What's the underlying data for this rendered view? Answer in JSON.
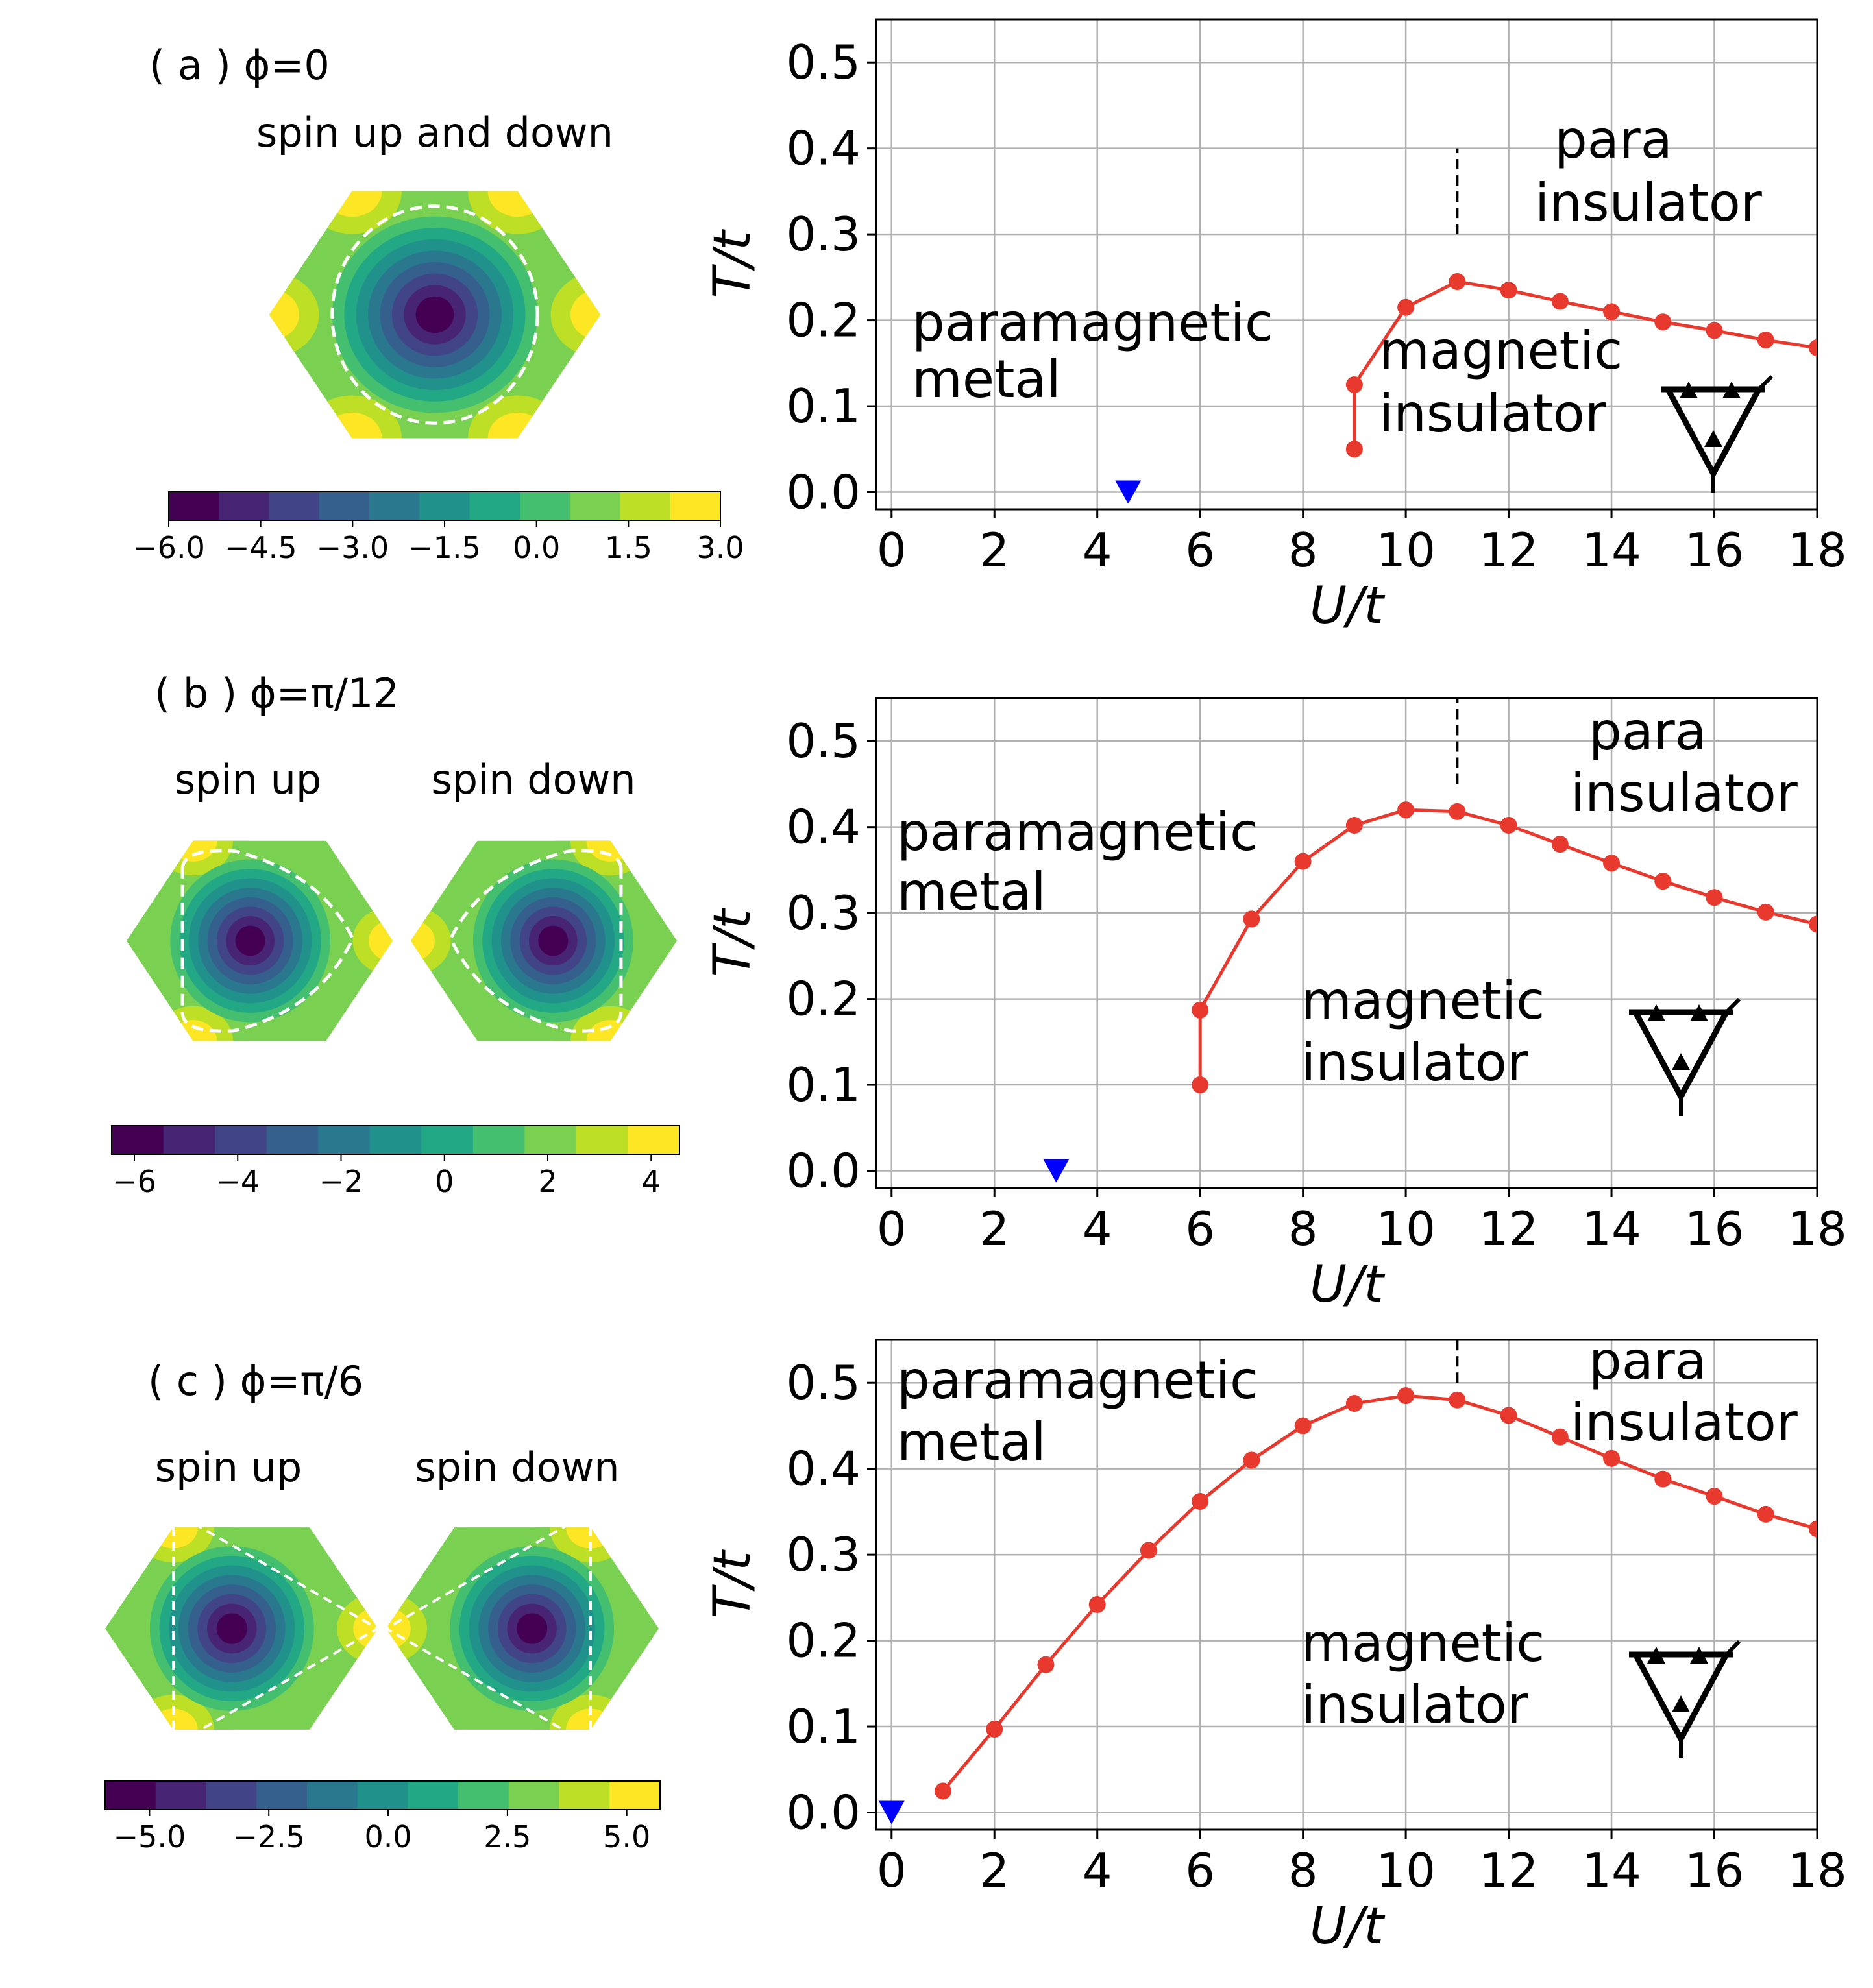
{
  "colormap": [
    "#440154",
    "#482475",
    "#414487",
    "#355f8d",
    "#2a788e",
    "#21918c",
    "#22a884",
    "#44bf70",
    "#7ad151",
    "#bddf26",
    "#fde725"
  ],
  "line_color": "#e8392e",
  "marker_color": "#0000ff",
  "panels": [
    {
      "label": "( a ) ϕ=0",
      "maps": [
        {
          "title": "spin up and down",
          "flip": false
        }
      ],
      "fermi": "circle",
      "colorbar_ticks": [
        "−6.0",
        "−4.5",
        "−3.0",
        "−1.5",
        "0.0",
        "1.5",
        "3.0"
      ],
      "regions": {
        "paramagnetic": [
          "paramagnetic",
          "metal"
        ],
        "para": [
          "para",
          "insulator"
        ],
        "magnetic": [
          "magnetic",
          "insulator"
        ]
      }
    },
    {
      "label": "( b ) ϕ=π/12",
      "maps": [
        {
          "title": "spin up",
          "flip": false
        },
        {
          "title": "spin down",
          "flip": true
        }
      ],
      "fermi": "rounded-triangle",
      "colorbar_ticks": [
        "−6",
        "−4",
        "−2",
        "0",
        "2",
        "4"
      ],
      "regions": {
        "paramagnetic": [
          "paramagnetic",
          "metal"
        ],
        "para": [
          "para",
          "insulator"
        ],
        "magnetic": [
          "magnetic",
          "insulator"
        ]
      }
    },
    {
      "label": "( c ) ϕ=π/6",
      "maps": [
        {
          "title": "spin up",
          "flip": false
        },
        {
          "title": "spin down",
          "flip": true
        }
      ],
      "fermi": "triangle",
      "colorbar_ticks": [
        "−5.0",
        "−2.5",
        "0.0",
        "2.5",
        "5.0"
      ],
      "regions": {
        "paramagnetic": [
          "paramagnetic",
          "metal"
        ],
        "para": [
          "para",
          "insulator"
        ],
        "magnetic": [
          "magnetic",
          "insulator"
        ]
      }
    }
  ],
  "chart_data": [
    {
      "type": "line",
      "xlabel": "U/t",
      "ylabel": "T/t",
      "xlim": [
        -0.3,
        18
      ],
      "ylim": [
        -0.02,
        0.55
      ],
      "xticks": [
        0,
        2,
        4,
        6,
        8,
        10,
        12,
        14,
        16,
        18
      ],
      "yticks": [
        "0.0",
        "0.1",
        "0.2",
        "0.3",
        "0.4",
        "0.5"
      ],
      "grid": true,
      "x": [
        9,
        9,
        10,
        11,
        12,
        13,
        14,
        15,
        16,
        17,
        18
      ],
      "y": [
        0.05,
        0.125,
        0.215,
        0.245,
        0.235,
        0.222,
        0.21,
        0.198,
        0.188,
        0.177,
        0.168
      ],
      "vline": {
        "x": 11,
        "y": [
          0.3,
          0.4
        ]
      },
      "marker": {
        "x": 4.6,
        "y": 0.0
      }
    },
    {
      "type": "line",
      "xlabel": "U/t",
      "ylabel": "T/t",
      "xlim": [
        -0.3,
        18
      ],
      "ylim": [
        -0.02,
        0.55
      ],
      "xticks": [
        0,
        2,
        4,
        6,
        8,
        10,
        12,
        14,
        16,
        18
      ],
      "yticks": [
        "0.0",
        "0.1",
        "0.2",
        "0.3",
        "0.4",
        "0.5"
      ],
      "grid": true,
      "x": [
        6,
        6,
        7,
        8,
        9,
        10,
        11,
        12,
        13,
        14,
        15,
        16,
        17,
        18
      ],
      "y": [
        0.1,
        0.187,
        0.293,
        0.36,
        0.402,
        0.42,
        0.418,
        0.402,
        0.38,
        0.358,
        0.337,
        0.318,
        0.301,
        0.287
      ],
      "vline": {
        "x": 11,
        "y": [
          0.45,
          0.55
        ]
      },
      "marker": {
        "x": 3.2,
        "y": 0.0
      }
    },
    {
      "type": "line",
      "xlabel": "U/t",
      "ylabel": "T/t",
      "xlim": [
        -0.3,
        18
      ],
      "ylim": [
        -0.02,
        0.55
      ],
      "xticks": [
        0,
        2,
        4,
        6,
        8,
        10,
        12,
        14,
        16,
        18
      ],
      "yticks": [
        "0.0",
        "0.1",
        "0.2",
        "0.3",
        "0.4",
        "0.5"
      ],
      "grid": true,
      "x": [
        1,
        2,
        3,
        4,
        5,
        6,
        7,
        8,
        9,
        10,
        11,
        12,
        13,
        14,
        15,
        16,
        17,
        18
      ],
      "y": [
        0.025,
        0.097,
        0.172,
        0.242,
        0.305,
        0.362,
        0.41,
        0.45,
        0.476,
        0.485,
        0.48,
        0.462,
        0.437,
        0.412,
        0.388,
        0.368,
        0.347,
        0.33
      ],
      "vline": {
        "x": 11,
        "y": [
          0.5,
          0.55
        ]
      },
      "marker": {
        "x": 0.0,
        "y": 0.0
      }
    }
  ]
}
